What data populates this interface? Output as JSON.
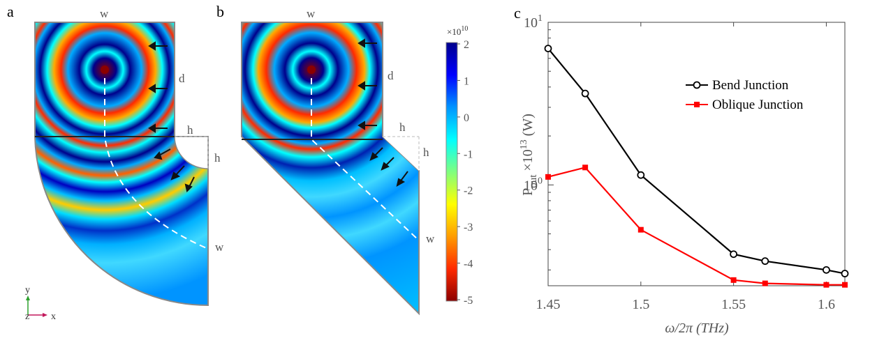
{
  "panels": {
    "a": {
      "letter": "a",
      "labels": {
        "w_top": "w",
        "d": "d",
        "h1": "h",
        "h2": "h",
        "w_out": "w"
      }
    },
    "b": {
      "letter": "b",
      "labels": {
        "w_top": "w",
        "d": "d",
        "h1": "h",
        "h2": "h",
        "w_out": "w"
      }
    },
    "c": {
      "letter": "c"
    }
  },
  "axes_triad": {
    "y": "y",
    "z": "z",
    "x": "x"
  },
  "colorbar": {
    "multiplier": "×10",
    "exponent": "10",
    "ticks": [
      "2",
      "1",
      "0",
      "-1",
      "-2",
      "-3",
      "-4",
      "-5"
    ],
    "stops": [
      "#8b0000",
      "#ff2a00",
      "#ff9c00",
      "#ffff00",
      "#7fff7f",
      "#00ffff",
      "#0094ff",
      "#0000ff",
      "#00008b"
    ]
  },
  "chart_data": {
    "type": "line",
    "xlabel": "ω/2π (THz)",
    "ylabel_main": "P",
    "ylabel_sub": "out",
    "ylabel_mult": " ×10",
    "ylabel_exp": "13",
    "ylabel_unit": " (W)",
    "xlim": [
      1.45,
      1.61
    ],
    "ylim_log10": [
      -0.62,
      1.0
    ],
    "yscale": "log",
    "x_ticks": [
      1.45,
      1.5,
      1.55,
      1.6
    ],
    "x_tick_labels": [
      "1.45",
      "1.5",
      "1.55",
      "1.6"
    ],
    "y_ticks": [
      {
        "value": 10,
        "base": "10",
        "exp": "1"
      },
      {
        "value": 1,
        "base": "10",
        "exp": "0"
      }
    ],
    "series": [
      {
        "name": "Bend Junction",
        "color": "#000000",
        "marker": "circle",
        "x": [
          1.45,
          1.47,
          1.5,
          1.55,
          1.567,
          1.6,
          1.61
        ],
        "y": [
          6.9,
          3.65,
          1.15,
          0.375,
          0.34,
          0.3,
          0.285
        ]
      },
      {
        "name": "Oblique Junction",
        "color": "#ff0000",
        "marker": "square",
        "x": [
          1.45,
          1.47,
          1.5,
          1.55,
          1.567,
          1.6,
          1.61
        ],
        "y": [
          1.12,
          1.28,
          0.53,
          0.26,
          0.248,
          0.243,
          0.243
        ]
      }
    ],
    "legend_position": "top-right"
  }
}
